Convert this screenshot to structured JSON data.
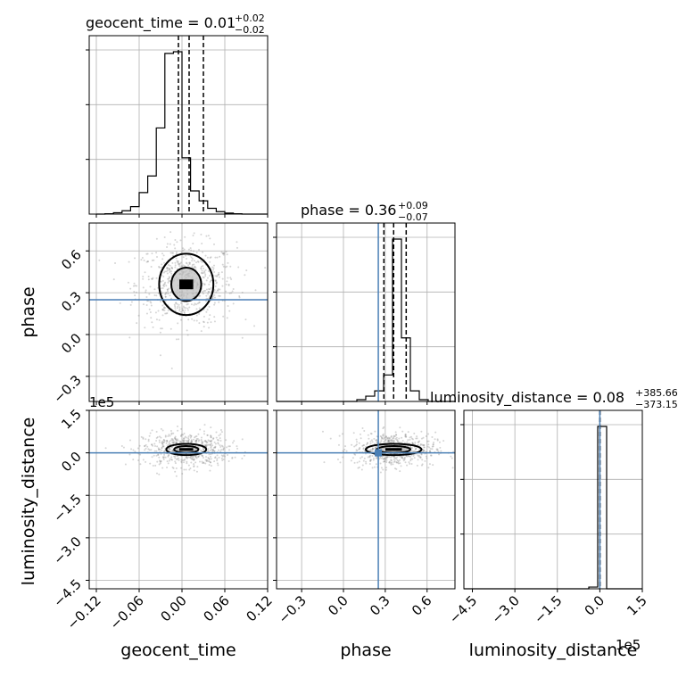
{
  "chart_data": {
    "type": "corner",
    "parameters": [
      "geocent_time",
      "phase",
      "luminosity_distance"
    ],
    "axis_labels": {
      "x": [
        "geocent_time",
        "phase",
        "luminosity_distance"
      ],
      "y": [
        "",
        "phase",
        "luminosity_distance"
      ]
    },
    "titles": [
      {
        "param": "geocent_time",
        "text": "geocent_time = 0.01",
        "sup": "+0.02",
        "sub": "−0.02"
      },
      {
        "param": "phase",
        "text": "phase = 0.36",
        "sup": "+0.09",
        "sub": "−0.07"
      },
      {
        "param": "luminosity_distance",
        "text": "luminosity_distance = 0.08",
        "sup": "+385.66",
        "sub": "−373.15"
      }
    ],
    "ranges": {
      "geocent_time": [
        -0.13,
        0.12
      ],
      "phase": [
        -0.48,
        0.8
      ],
      "luminosity_distance": [
        -480000,
        150000
      ]
    },
    "ticks": {
      "geocent_time": {
        "values": [
          -0.12,
          -0.06,
          0.0,
          0.06,
          0.12
        ],
        "labels": [
          "−0.12",
          "−0.06",
          "0.00",
          "0.06",
          "0.12"
        ]
      },
      "phase": {
        "values": [
          -0.3,
          0.0,
          0.3,
          0.6
        ],
        "labels": [
          "−0.3",
          "0.0",
          "0.3",
          "0.6"
        ]
      },
      "luminosity_distance": {
        "values": [
          -450000,
          -300000,
          -150000,
          0,
          150000
        ],
        "labels": [
          "−4.5",
          "−3.0",
          "−1.5",
          "0.0",
          "1.5"
        ]
      }
    },
    "offset_label": "1e5",
    "injection": {
      "phase": 0.25,
      "luminosity_distance": 0,
      "color": "#4a7fb5"
    },
    "histograms": [
      {
        "param": "geocent_time",
        "bin_edges": [
          -0.12,
          -0.108,
          -0.096,
          -0.084,
          -0.072,
          -0.06,
          -0.048,
          -0.036,
          -0.024,
          -0.012,
          0.0,
          0.012,
          0.024,
          0.036,
          0.048,
          0.06,
          0.072,
          0.084,
          0.096,
          0.108,
          0.12
        ],
        "counts": [
          0.0,
          0.002,
          0.008,
          0.02,
          0.045,
          0.13,
          0.23,
          0.52,
          0.97,
          0.98,
          0.34,
          0.14,
          0.08,
          0.035,
          0.015,
          0.006,
          0.002,
          0.0,
          0.0,
          0.0
        ],
        "quantiles": [
          -0.005,
          0.01,
          0.03
        ]
      },
      {
        "param": "phase",
        "bin_edges": [
          -0.48,
          -0.416,
          -0.352,
          -0.288,
          -0.224,
          -0.16,
          -0.096,
          -0.032,
          0.032,
          0.096,
          0.16,
          0.224,
          0.288,
          0.352,
          0.416,
          0.48,
          0.544,
          0.608,
          0.672,
          0.736,
          0.8
        ],
        "counts": [
          0.0,
          0.0,
          0.0,
          0.0,
          0.0,
          0.0,
          0.0,
          0.0,
          0.0,
          0.01,
          0.03,
          0.06,
          0.15,
          0.92,
          0.36,
          0.06,
          0.01,
          0.0,
          0.0,
          0.0
        ],
        "quantiles": [
          0.29,
          0.36,
          0.45
        ]
      },
      {
        "param": "luminosity_distance",
        "bin_edges": [
          -480000,
          -448500,
          -417000,
          -385500,
          -354000,
          -322500,
          -291000,
          -259500,
          -228000,
          -196500,
          -165000,
          -133500,
          -102000,
          -70500,
          -39000,
          -7500,
          24000,
          55500,
          87000,
          118500,
          150000
        ],
        "counts": [
          0.0,
          0.0,
          0.0,
          0.0,
          0.0,
          0.0,
          0.0,
          0.0,
          0.0,
          0.0,
          0.0,
          0.0,
          0.0,
          0.0,
          0.01,
          0.93,
          0.0,
          0.0,
          0.0,
          0.0
        ],
        "quantiles": [
          -373.07,
          0.08,
          385.74
        ]
      }
    ],
    "pairs": [
      {
        "x": "geocent_time",
        "y": "phase",
        "center": [
          0.006,
          0.36
        ],
        "contours": [
          {
            "rx": 0.006,
            "ry": 0.035
          },
          {
            "rx": 0.021,
            "ry": 0.12
          },
          {
            "rx": 0.038,
            "ry": 0.22
          }
        ],
        "scatter_spread": [
          0.035,
          0.15
        ]
      },
      {
        "x": "geocent_time",
        "y": "luminosity_distance",
        "center": [
          0.006,
          12000
        ],
        "contours": [
          {
            "rx": 0.006,
            "ry": 5000
          },
          {
            "rx": 0.017,
            "ry": 12000
          },
          {
            "rx": 0.028,
            "ry": 20000
          }
        ],
        "scatter_spread": [
          0.03,
          30000
        ]
      },
      {
        "x": "phase",
        "y": "luminosity_distance",
        "center": [
          0.36,
          12000
        ],
        "contours": [
          {
            "rx": 0.04,
            "ry": 5000
          },
          {
            "rx": 0.12,
            "ry": 12000
          },
          {
            "rx": 0.2,
            "ry": 20000
          }
        ],
        "scatter_spread": [
          0.15,
          30000
        ]
      }
    ]
  }
}
